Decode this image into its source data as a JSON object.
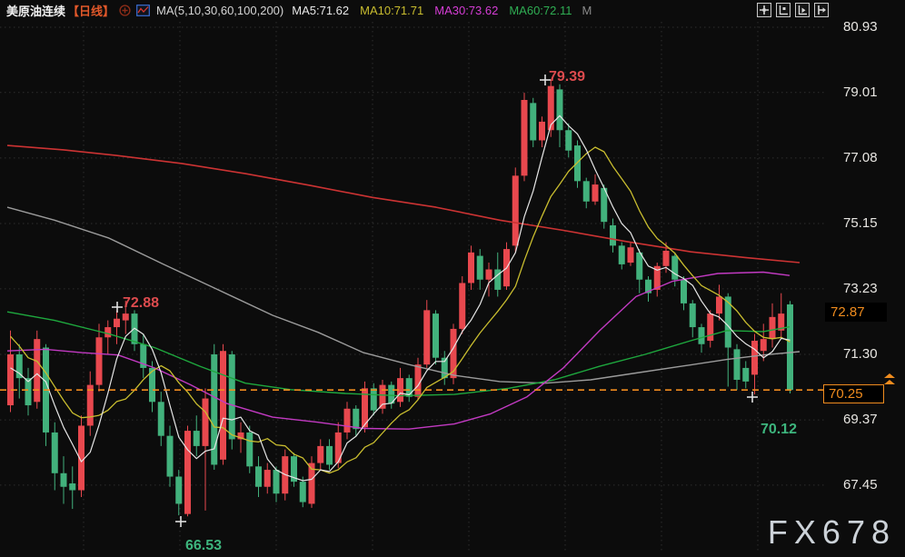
{
  "header": {
    "symbol": "美原油连续",
    "period": "【日线】",
    "ma_label": "MA(5,10,30,60,100,200)",
    "ma5": "MA5:71.62",
    "ma10": "MA10:71.71",
    "ma30": "MA30:73.62",
    "ma60": "MA60:72.11",
    "suffix": "M"
  },
  "axis": {
    "labels": [
      80.93,
      79.01,
      77.08,
      75.15,
      73.23,
      71.3,
      69.37,
      67.45
    ],
    "last_label": "72.87",
    "alert_label": "70.25"
  },
  "watermark": "FX678",
  "theme": {
    "background": "#0c0c0c",
    "up_color": "#e8484e",
    "down_color": "#42b17c",
    "ma5_color": "#e6e6e6",
    "ma10_color": "#c9bd2f",
    "ma30_color": "#c23ac2",
    "ma60_color": "#1ea83e",
    "ma100_color": "#9b9b9b",
    "ma200_color": "#cc3333",
    "alert_color": "#f08c1e",
    "grid_color": "#2e2e2e",
    "annotation_high_color": "#dd4b4e",
    "annotation_low_color": "#3db57d"
  },
  "chart_data": {
    "type": "candlestick",
    "title": "美原油连续 日线 (WTI crude continuous, daily)",
    "y_axis_ticks": [
      80.93,
      79.01,
      77.08,
      75.15,
      73.23,
      71.3,
      69.37,
      67.45
    ],
    "ylim": [
      66.3,
      81.1
    ],
    "x_grid": [
      92,
      198,
      304,
      410,
      516,
      622,
      728,
      834
    ],
    "price_line": 70.25,
    "ohlc": [
      [
        69.8,
        72.0,
        69.6,
        71.3
      ],
      [
        71.3,
        71.6,
        70.0,
        70.6
      ],
      [
        70.6,
        70.9,
        69.5,
        69.8
      ],
      [
        69.9,
        72.0,
        69.7,
        71.75
      ],
      [
        71.5,
        71.6,
        68.6,
        69.0
      ],
      [
        69.0,
        69.3,
        67.3,
        67.8
      ],
      [
        67.8,
        68.3,
        66.9,
        67.4
      ],
      [
        67.5,
        68.0,
        66.75,
        67.3
      ],
      [
        67.3,
        69.5,
        67.1,
        69.2
      ],
      [
        69.2,
        70.8,
        68.9,
        70.4
      ],
      [
        70.4,
        72.2,
        70.2,
        71.8
      ],
      [
        71.8,
        72.3,
        71.3,
        72.1
      ],
      [
        72.1,
        72.6,
        71.6,
        72.35
      ],
      [
        72.3,
        72.88,
        71.9,
        72.5
      ],
      [
        72.5,
        72.6,
        71.4,
        71.6
      ],
      [
        71.6,
        71.9,
        70.6,
        70.9
      ],
      [
        70.9,
        71.1,
        69.6,
        69.9
      ],
      [
        69.9,
        70.2,
        68.6,
        68.9
      ],
      [
        68.9,
        69.2,
        67.4,
        67.7
      ],
      [
        67.7,
        67.9,
        66.56,
        66.9
      ],
      [
        66.6,
        69.2,
        66.53,
        69.05
      ],
      [
        69.05,
        69.5,
        68.3,
        68.6
      ],
      [
        68.6,
        70.3,
        66.7,
        70.0
      ],
      [
        71.3,
        71.6,
        67.9,
        68.05
      ],
      [
        68.2,
        71.6,
        68.05,
        71.4
      ],
      [
        71.3,
        71.4,
        68.5,
        68.8
      ],
      [
        68.8,
        69.3,
        68.4,
        69.0
      ],
      [
        69.0,
        69.2,
        67.8,
        68.0
      ],
      [
        68.0,
        68.3,
        67.1,
        67.4
      ],
      [
        67.4,
        68.1,
        67.2,
        67.9
      ],
      [
        67.9,
        68.0,
        66.95,
        67.2
      ],
      [
        67.2,
        68.5,
        67.0,
        68.3
      ],
      [
        68.3,
        68.4,
        67.4,
        67.55
      ],
      [
        67.55,
        67.7,
        66.8,
        66.95
      ],
      [
        66.9,
        68.3,
        66.78,
        68.1
      ],
      [
        68.1,
        68.8,
        67.9,
        68.6
      ],
      [
        68.6,
        68.8,
        67.9,
        68.05
      ],
      [
        68.1,
        69.3,
        67.95,
        69.0
      ],
      [
        69.0,
        69.9,
        68.8,
        69.7
      ],
      [
        69.7,
        69.8,
        68.9,
        69.1
      ],
      [
        69.15,
        70.5,
        69.0,
        70.3
      ],
      [
        70.3,
        70.45,
        69.5,
        69.65
      ],
      [
        69.7,
        70.55,
        69.55,
        70.4
      ],
      [
        70.4,
        70.5,
        69.7,
        69.85
      ],
      [
        69.9,
        70.9,
        69.75,
        70.6
      ],
      [
        70.6,
        70.7,
        69.9,
        70.05
      ],
      [
        70.05,
        71.2,
        69.95,
        71.0
      ],
      [
        71.0,
        72.9,
        70.9,
        72.6
      ],
      [
        72.5,
        72.6,
        71.0,
        71.2
      ],
      [
        71.2,
        71.4,
        70.4,
        70.6
      ],
      [
        70.6,
        72.2,
        70.42,
        72.05
      ],
      [
        72.05,
        73.6,
        71.9,
        73.4
      ],
      [
        73.4,
        74.5,
        73.2,
        74.3
      ],
      [
        74.2,
        74.4,
        73.2,
        73.5
      ],
      [
        73.5,
        74.0,
        73.0,
        73.8
      ],
      [
        73.8,
        74.3,
        73.0,
        73.2
      ],
      [
        73.3,
        74.6,
        73.2,
        74.4
      ],
      [
        74.5,
        76.8,
        74.3,
        76.56
      ],
      [
        76.56,
        79.0,
        76.4,
        78.79
      ],
      [
        78.7,
        78.85,
        77.4,
        77.6
      ],
      [
        77.6,
        78.3,
        77.4,
        78.15
      ],
      [
        77.9,
        79.39,
        77.7,
        79.2
      ],
      [
        79.1,
        79.25,
        77.4,
        77.9
      ],
      [
        77.9,
        78.1,
        77.1,
        77.3
      ],
      [
        77.45,
        77.6,
        76.2,
        76.4
      ],
      [
        76.4,
        76.5,
        75.6,
        75.8
      ],
      [
        75.8,
        76.6,
        75.7,
        76.3
      ],
      [
        76.2,
        76.3,
        75.0,
        75.2
      ],
      [
        75.1,
        75.3,
        74.3,
        74.5
      ],
      [
        74.5,
        74.6,
        73.8,
        73.95
      ],
      [
        74.0,
        74.6,
        73.9,
        74.45
      ],
      [
        74.3,
        74.4,
        73.1,
        73.5
      ],
      [
        73.5,
        73.6,
        72.85,
        73.1
      ],
      [
        73.2,
        74.0,
        73.0,
        73.9
      ],
      [
        73.9,
        74.6,
        73.7,
        74.35
      ],
      [
        74.2,
        74.3,
        73.3,
        73.5
      ],
      [
        73.5,
        73.6,
        72.6,
        72.8
      ],
      [
        72.8,
        72.9,
        71.8,
        72.1
      ],
      [
        72.1,
        72.2,
        71.35,
        71.6
      ],
      [
        71.7,
        72.6,
        71.5,
        72.5
      ],
      [
        72.5,
        73.35,
        72.3,
        73.0
      ],
      [
        73.0,
        73.1,
        70.35,
        71.5
      ],
      [
        71.45,
        71.6,
        70.25,
        70.55
      ],
      [
        70.9,
        71.1,
        70.3,
        70.5
      ],
      [
        70.7,
        71.9,
        70.12,
        71.7
      ],
      [
        71.4,
        72.2,
        71.1,
        71.75
      ],
      [
        71.75,
        72.8,
        71.5,
        72.4
      ],
      [
        72.0,
        73.1,
        71.8,
        72.5
      ],
      [
        72.77,
        72.87,
        70.15,
        70.25
      ]
    ],
    "pre_closes": [
      73.5,
      73.2,
      72.8,
      72.4,
      71.9,
      71.4,
      71.0,
      70.6,
      70.2
    ],
    "ma_lines": {
      "ma200": [
        [
          8,
          77.45
        ],
        [
          70,
          77.32
        ],
        [
          130,
          77.15
        ],
        [
          200,
          76.92
        ],
        [
          270,
          76.62
        ],
        [
          340,
          76.28
        ],
        [
          410,
          75.92
        ],
        [
          480,
          75.63
        ],
        [
          550,
          75.25
        ],
        [
          620,
          74.95
        ],
        [
          690,
          74.62
        ],
        [
          760,
          74.32
        ],
        [
          820,
          74.15
        ],
        [
          880,
          74.0
        ]
      ],
      "ma100": [
        [
          8,
          75.63
        ],
        [
          60,
          75.25
        ],
        [
          120,
          74.72
        ],
        [
          180,
          73.95
        ],
        [
          240,
          73.2
        ],
        [
          300,
          72.45
        ],
        [
          350,
          71.95
        ],
        [
          400,
          71.35
        ],
        [
          450,
          71.0
        ],
        [
          500,
          70.68
        ],
        [
          550,
          70.5
        ],
        [
          600,
          70.45
        ],
        [
          650,
          70.55
        ],
        [
          700,
          70.75
        ],
        [
          750,
          70.95
        ],
        [
          800,
          71.15
        ],
        [
          840,
          71.28
        ],
        [
          880,
          71.38
        ]
      ],
      "ma60": [
        [
          8,
          72.55
        ],
        [
          60,
          72.3
        ],
        [
          120,
          71.9
        ],
        [
          170,
          71.5
        ],
        [
          220,
          70.95
        ],
        [
          270,
          70.45
        ],
        [
          320,
          70.26
        ],
        [
          380,
          70.15
        ],
        [
          440,
          70.08
        ],
        [
          500,
          70.12
        ],
        [
          560,
          70.3
        ],
        [
          610,
          70.55
        ],
        [
          660,
          70.95
        ],
        [
          710,
          71.3
        ],
        [
          760,
          71.7
        ],
        [
          800,
          72.0
        ],
        [
          840,
          71.97
        ],
        [
          869,
          72.11
        ]
      ],
      "ma30": [
        [
          8,
          71.4
        ],
        [
          50,
          71.45
        ],
        [
          90,
          71.35
        ],
        [
          130,
          71.28
        ],
        [
          170,
          70.9
        ],
        [
          210,
          70.4
        ],
        [
          250,
          69.85
        ],
        [
          300,
          69.45
        ],
        [
          350,
          69.3
        ],
        [
          400,
          69.12
        ],
        [
          450,
          69.1
        ],
        [
          500,
          69.25
        ],
        [
          540,
          69.55
        ],
        [
          580,
          70.05
        ],
        [
          620,
          70.9
        ],
        [
          660,
          72.0
        ],
        [
          700,
          73.0
        ],
        [
          740,
          73.45
        ],
        [
          790,
          73.68
        ],
        [
          840,
          73.72
        ],
        [
          869,
          73.62
        ]
      ]
    },
    "annotations": [
      {
        "text": "79.39",
        "kind": "high",
        "label_x": 604,
        "label_y": 76,
        "marker_x": 600,
        "marker_y": 88
      },
      {
        "text": "72.88",
        "kind": "high",
        "label_x": 135,
        "label_y": 325,
        "marker_x": 129,
        "marker_y": 338
      },
      {
        "text": "70.12",
        "kind": "low",
        "label_x": 837,
        "label_y": 464,
        "marker_x": 828,
        "marker_y": 437
      },
      {
        "text": "66.53",
        "kind": "low",
        "label_x": 204,
        "label_y": 592,
        "marker_x": 199,
        "marker_y": 574
      }
    ]
  }
}
